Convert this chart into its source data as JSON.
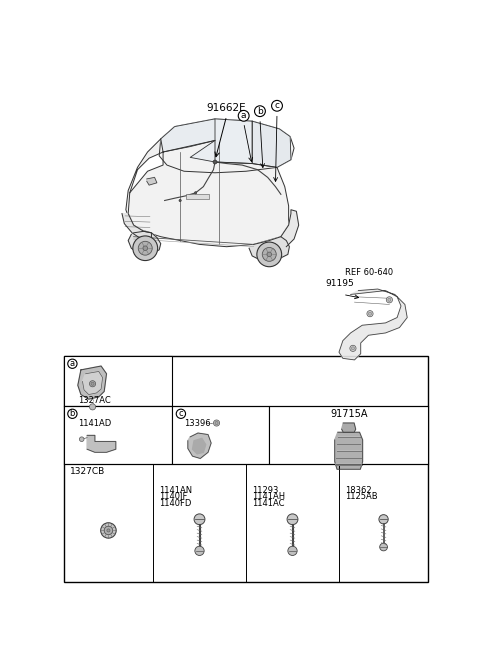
{
  "bg_color": "#ffffff",
  "text_color": "#000000",
  "line_color": "#333333",
  "table_line_color": "#888888",
  "part_color": "#aaaaaa",
  "car_label": "91662E",
  "ref_label": "REF 60-640",
  "part_91195": "91195",
  "part_91715A": "91715A",
  "box_a": "a",
  "box_b": "b",
  "box_c": "c",
  "part_1327AC": "1327AC",
  "part_1141AD": "1141AD",
  "part_13396": "13396",
  "part_1327CB": "1327CB",
  "part_1141AN": "1141AN",
  "part_1140JF": "1140JF",
  "part_1140FD": "1140FD",
  "part_11293": "11293",
  "part_1141AH": "1141AH",
  "part_1141AC": "1141AC",
  "part_18362": "18362",
  "part_1125AB": "1125AB",
  "fig_width": 4.8,
  "fig_height": 6.57,
  "dpi": 100
}
